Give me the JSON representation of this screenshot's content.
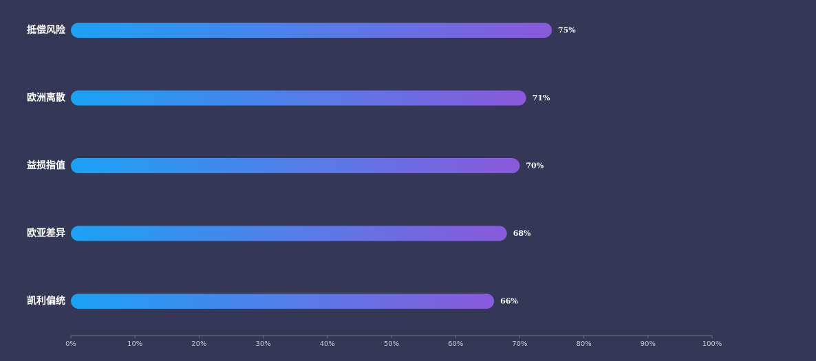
{
  "chart_data": {
    "type": "bar",
    "orientation": "horizontal",
    "categories": [
      "抵偿风险",
      "欧洲离散",
      "益损指值",
      "欧亚差异",
      "凯利偏统"
    ],
    "values": [
      75,
      71,
      70,
      68,
      66
    ],
    "value_labels": [
      "75%",
      "71%",
      "70%",
      "68%",
      "66%"
    ],
    "xlim": [
      0,
      100
    ],
    "x_ticks": [
      0,
      10,
      20,
      30,
      40,
      50,
      60,
      70,
      80,
      90,
      100
    ],
    "x_tick_labels": [
      "0%",
      "10%",
      "20%",
      "30%",
      "40%",
      "50%",
      "60%",
      "70%",
      "80%",
      "90%",
      "100%"
    ],
    "grid": false,
    "colors": {
      "background": "#343755",
      "bar_gradient_start": "#1aa2f4",
      "bar_gradient_end": "#8a59dc",
      "axis": "#6c6f8c",
      "label": "#ffffff",
      "tick_label": "#c8cbd8"
    }
  }
}
